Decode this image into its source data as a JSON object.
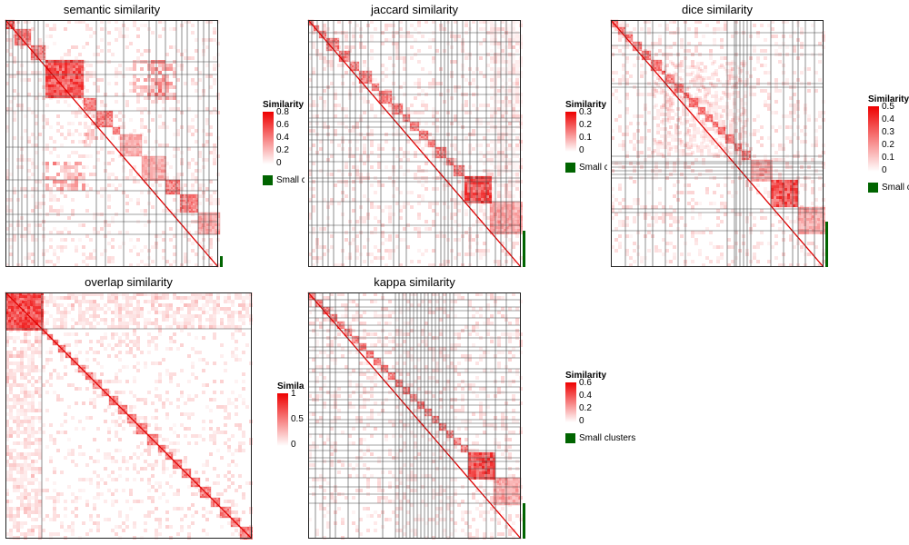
{
  "chart_data": [
    {
      "type": "heatmap",
      "title": "semantic similarity",
      "legend": {
        "title": "Similarity",
        "ticks": [
          "0.8",
          "0.6",
          "0.4",
          "0.2",
          "0"
        ],
        "range": [
          0,
          0.8
        ],
        "placement": "right"
      },
      "small_clusters_label": "Small clusters",
      "colors": {
        "low": "#ffffff",
        "high": "#ee0000",
        "small_clusters": "#006400"
      }
    },
    {
      "type": "heatmap",
      "title": "jaccard similarity",
      "legend": {
        "title": "Similarity",
        "ticks": [
          "0.3",
          "0.2",
          "0.1",
          "0"
        ],
        "range": [
          0,
          0.3
        ],
        "placement": "right"
      },
      "small_clusters_label": "Small clusters",
      "colors": {
        "low": "#ffffff",
        "high": "#ee0000",
        "small_clusters": "#006400"
      }
    },
    {
      "type": "heatmap",
      "title": "dice similarity",
      "legend": {
        "title": "Similarity",
        "ticks": [
          "0.5",
          "0.4",
          "0.3",
          "0.2",
          "0.1",
          "0"
        ],
        "range": [
          0,
          0.5
        ],
        "placement": "right"
      },
      "small_clusters_label": "Small clusters",
      "colors": {
        "low": "#ffffff",
        "high": "#ee0000",
        "small_clusters": "#006400"
      }
    },
    {
      "type": "heatmap",
      "title": "overlap similarity",
      "legend": {
        "title": "Similarity",
        "ticks": [
          "1",
          "0.5",
          "0"
        ],
        "range": [
          0,
          1
        ],
        "placement": "right"
      },
      "colors": {
        "low": "#ffffff",
        "high": "#ee0000"
      }
    },
    {
      "type": "heatmap",
      "title": "kappa similarity",
      "legend": {
        "title": "Similarity",
        "ticks": [
          "0.6",
          "0.4",
          "0.2",
          "0"
        ],
        "range": [
          0,
          0.6
        ],
        "placement": "right"
      },
      "small_clusters_label": "Small clusters",
      "colors": {
        "low": "#ffffff",
        "high": "#ee0000",
        "small_clusters": "#006400"
      }
    }
  ]
}
